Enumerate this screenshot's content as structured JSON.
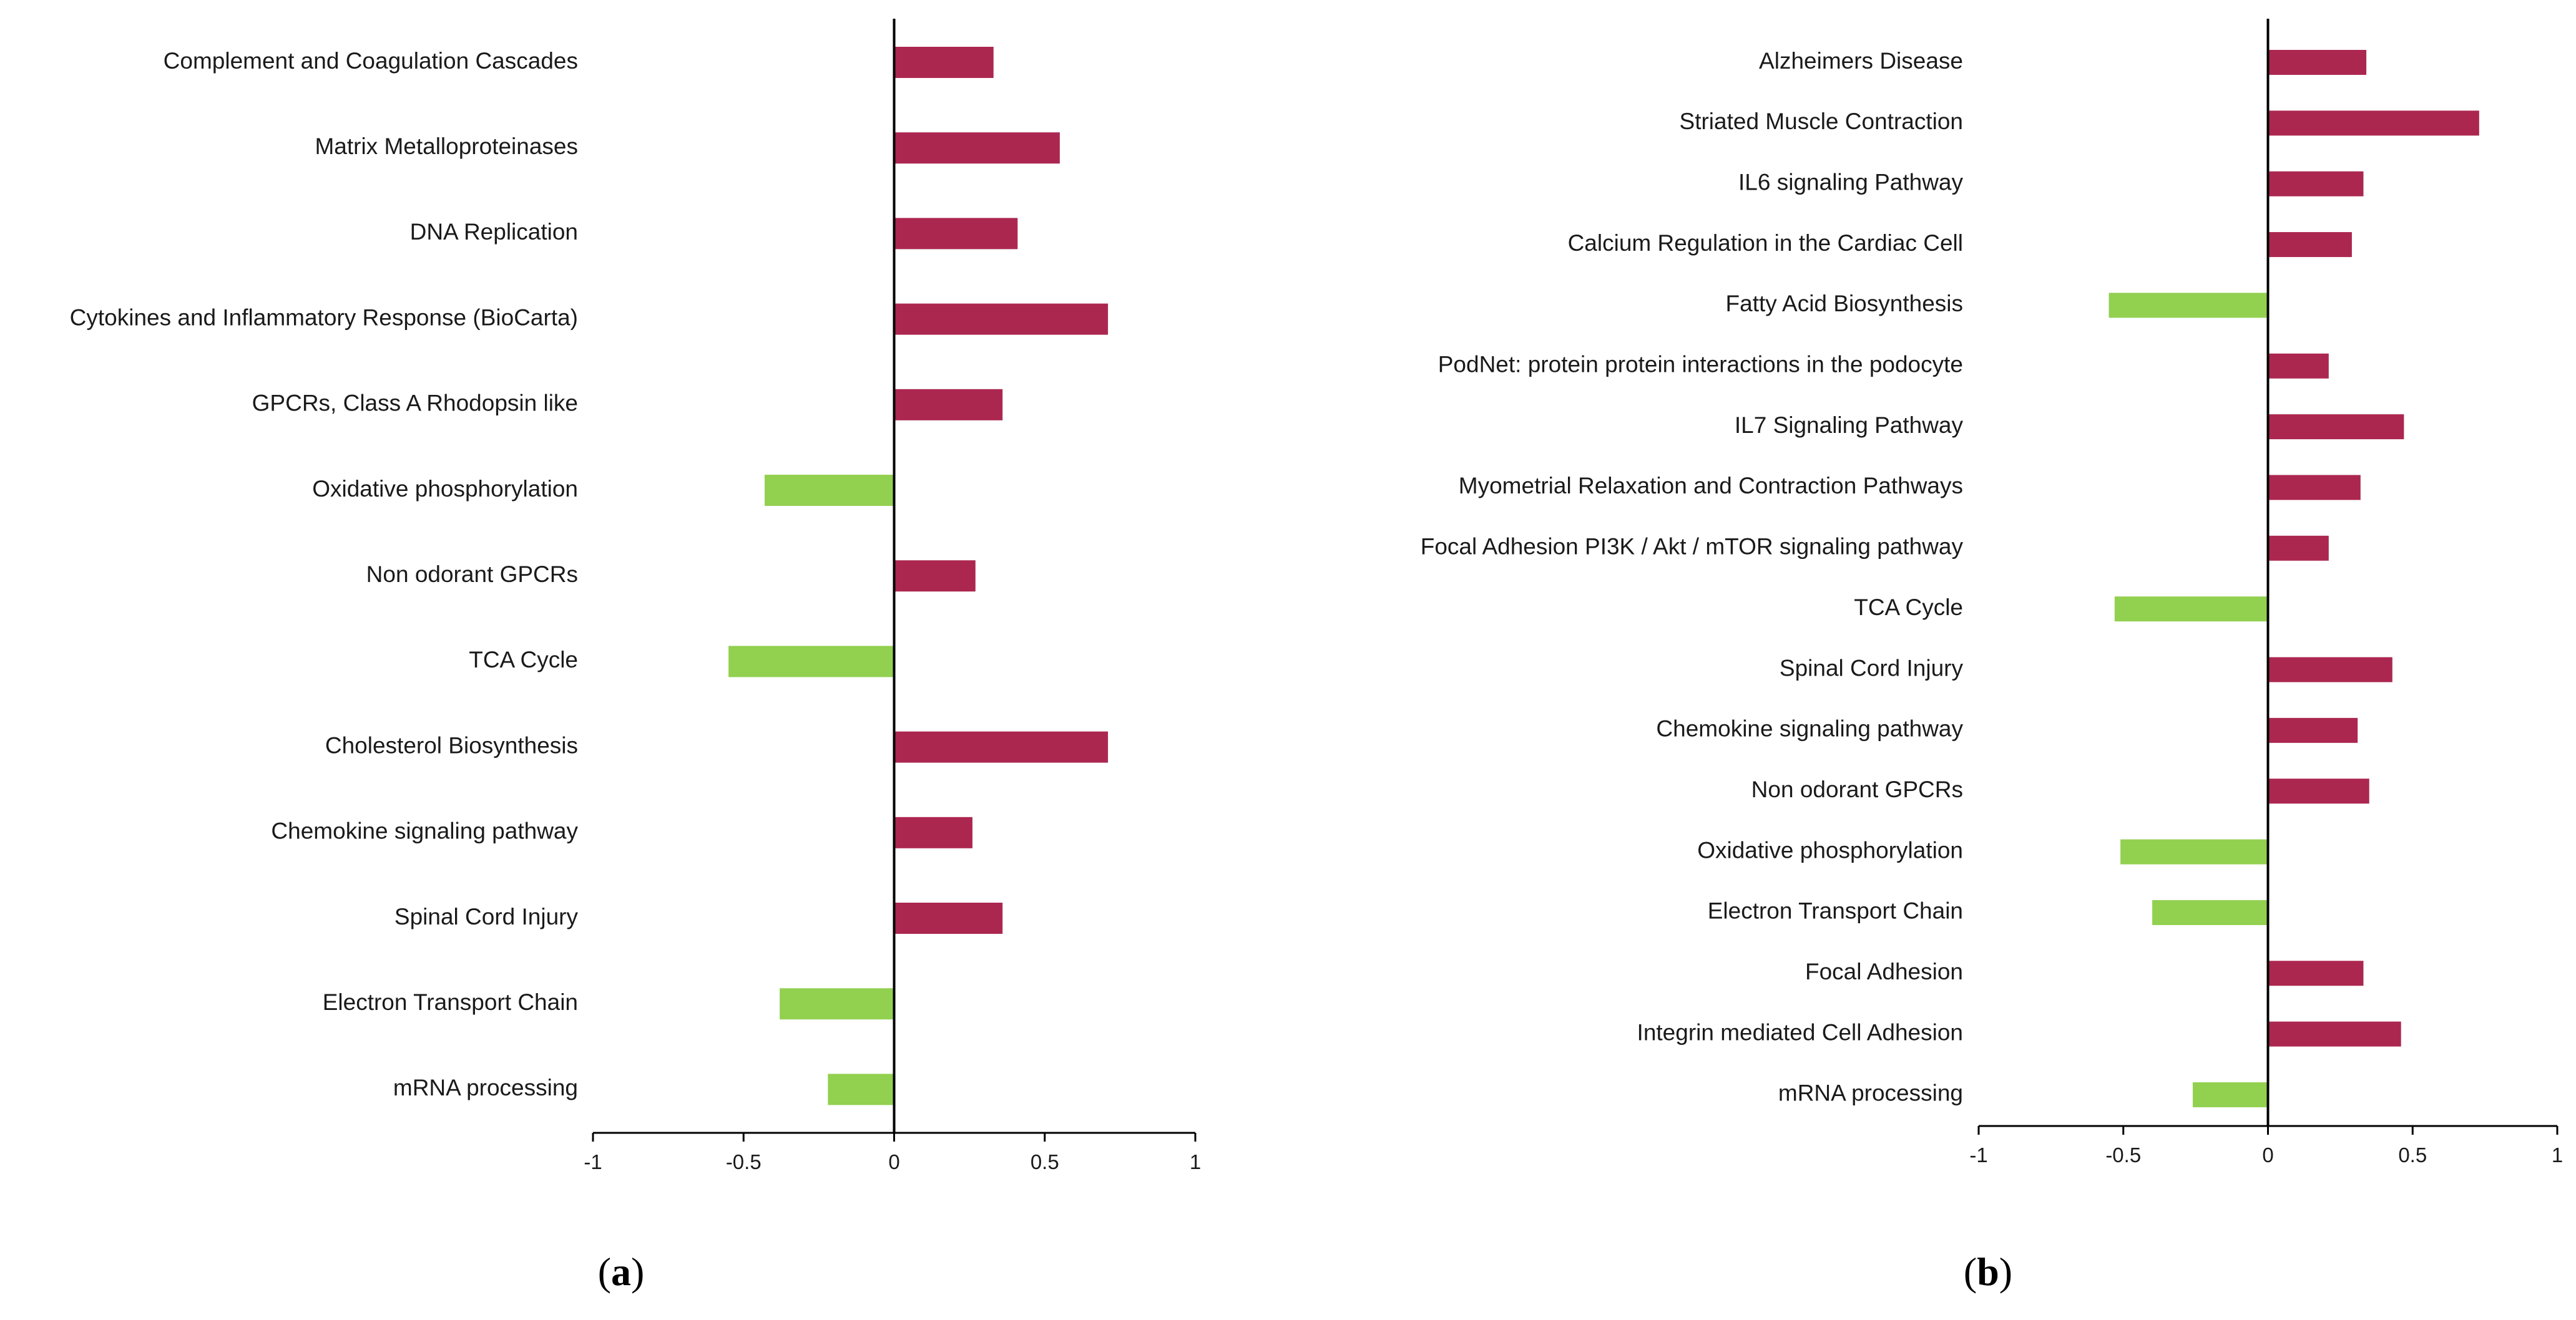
{
  "colors": {
    "positive": "#ac2750",
    "negative": "#92d050",
    "axis": "#000000",
    "text": "#1a1a1a"
  },
  "chart_data": [
    {
      "type": "bar",
      "orientation": "horizontal",
      "panel": "a",
      "panel_label": {
        "open": "(",
        "letter": "a",
        "close": ")"
      },
      "categories": [
        "Complement and Coagulation Cascades",
        "Matrix Metalloproteinases",
        "DNA Replication",
        "Cytokines and Inflammatory Response (BioCarta)",
        "GPCRs, Class A Rhodopsin like",
        "Oxidative phosphorylation",
        "Non odorant GPCRs",
        "TCA Cycle",
        "Cholesterol Biosynthesis",
        "Chemokine signaling pathway",
        "Spinal Cord Injury",
        "Electron Transport Chain",
        "mRNA processing"
      ],
      "values": [
        0.33,
        0.55,
        0.41,
        0.71,
        0.36,
        -0.43,
        0.27,
        -0.55,
        0.71,
        0.26,
        0.36,
        -0.38,
        -0.22
      ],
      "xlim": [
        -1,
        1
      ],
      "xticks": [
        "-1",
        "-0.5",
        "0",
        "0.5",
        "1"
      ],
      "title": "",
      "xlabel": "",
      "ylabel": "",
      "grid": false,
      "legend": "none"
    },
    {
      "type": "bar",
      "orientation": "horizontal",
      "panel": "b",
      "panel_label": {
        "open": "(",
        "letter": "b",
        "close": ")"
      },
      "categories": [
        "Alzheimers Disease",
        "Striated Muscle Contraction",
        "IL6 signaling Pathway",
        "Calcium Regulation in the Cardiac Cell",
        "Fatty Acid Biosynthesis",
        "PodNet: protein protein interactions in the podocyte",
        "IL7 Signaling Pathway",
        "Myometrial Relaxation and Contraction Pathways",
        "Focal Adhesion PI3K / Akt / mTOR signaling pathway",
        "TCA Cycle",
        "Spinal Cord Injury",
        "Chemokine signaling pathway",
        "Non odorant GPCRs",
        "Oxidative phosphorylation",
        "Electron Transport Chain",
        "Focal Adhesion",
        "Integrin mediated Cell Adhesion",
        "mRNA processing"
      ],
      "values": [
        0.34,
        0.73,
        0.33,
        0.29,
        -0.55,
        0.21,
        0.47,
        0.32,
        0.21,
        -0.53,
        0.43,
        0.31,
        0.35,
        -0.51,
        -0.4,
        0.33,
        0.46,
        -0.26
      ],
      "xlim": [
        -1,
        1
      ],
      "xticks": [
        "-1",
        "-0.5",
        "0",
        "0.5",
        "1"
      ],
      "title": "",
      "xlabel": "",
      "ylabel": "",
      "grid": false,
      "legend": "none"
    }
  ]
}
